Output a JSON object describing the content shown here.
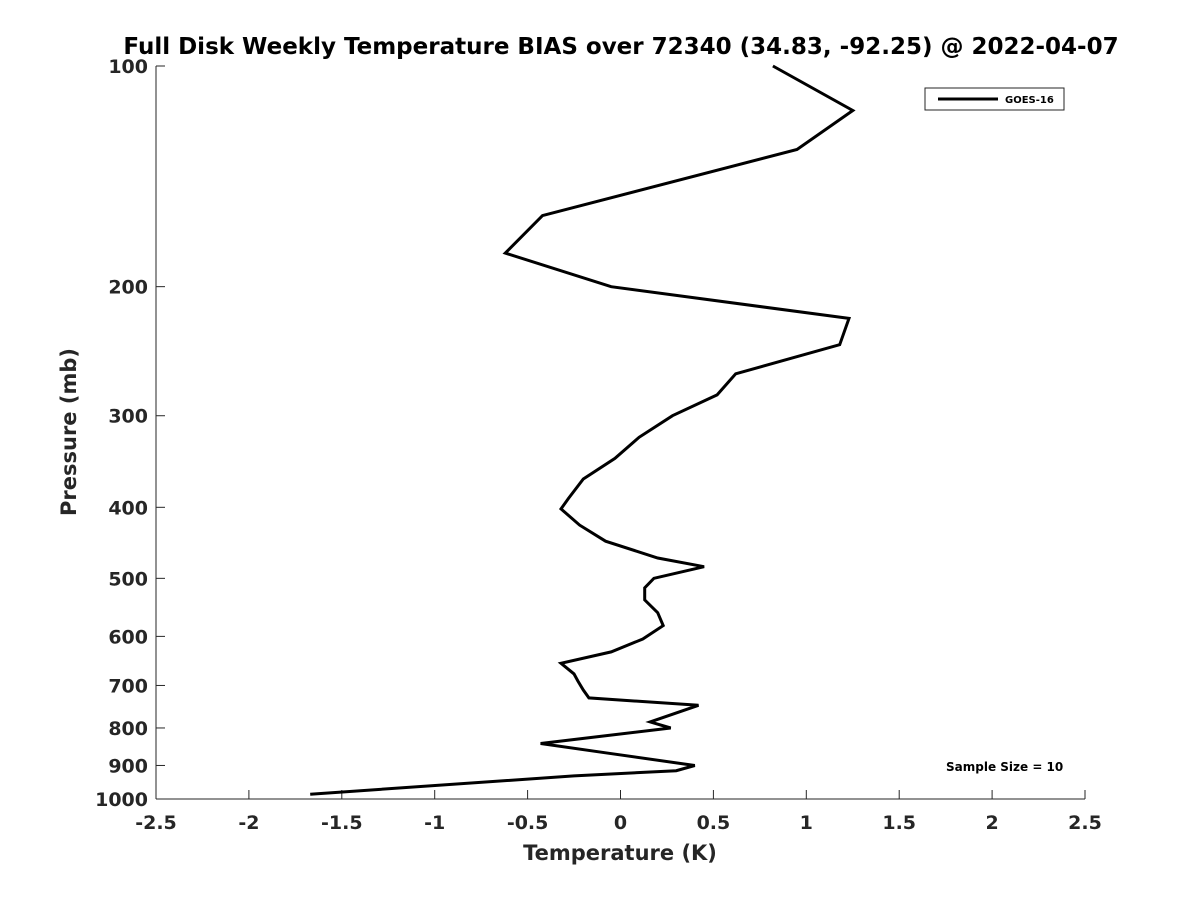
{
  "chart_data": {
    "type": "line",
    "title": "Full Disk Weekly Temperature BIAS over 72340 (34.83, -92.25) @ 2022-04-07",
    "xlabel": "Temperature (K)",
    "ylabel": "Pressure (mb)",
    "xlim": [
      -2.5,
      2.5
    ],
    "ylim": [
      1000,
      100
    ],
    "y_scale": "log",
    "y_reversed": true,
    "x_ticks": [
      "-2.5",
      "-2",
      "-1.5",
      "-1",
      "-0.5",
      "0",
      "0.5",
      "1",
      "1.5",
      "2",
      "2.5"
    ],
    "y_ticks": [
      "100",
      "200",
      "300",
      "400",
      "500",
      "600",
      "700",
      "800",
      "900",
      "1000"
    ],
    "grid": false,
    "legend_position": "top-right",
    "series": [
      {
        "name": "GOES-16",
        "color": "#000000",
        "points": [
          {
            "x": 0.82,
            "p": 100
          },
          {
            "x": 1.25,
            "p": 115
          },
          {
            "x": 0.95,
            "p": 130
          },
          {
            "x": -0.42,
            "p": 160
          },
          {
            "x": -0.62,
            "p": 180
          },
          {
            "x": -0.05,
            "p": 200
          },
          {
            "x": 1.23,
            "p": 221
          },
          {
            "x": 1.18,
            "p": 240
          },
          {
            "x": 0.62,
            "p": 263
          },
          {
            "x": 0.52,
            "p": 281
          },
          {
            "x": 0.28,
            "p": 300
          },
          {
            "x": 0.1,
            "p": 321
          },
          {
            "x": -0.03,
            "p": 343
          },
          {
            "x": -0.2,
            "p": 366
          },
          {
            "x": -0.28,
            "p": 389
          },
          {
            "x": -0.32,
            "p": 402
          },
          {
            "x": -0.22,
            "p": 423
          },
          {
            "x": -0.08,
            "p": 445
          },
          {
            "x": 0.2,
            "p": 469
          },
          {
            "x": 0.45,
            "p": 482
          },
          {
            "x": 0.18,
            "p": 500
          },
          {
            "x": 0.13,
            "p": 515
          },
          {
            "x": 0.13,
            "p": 535
          },
          {
            "x": 0.2,
            "p": 557
          },
          {
            "x": 0.23,
            "p": 580
          },
          {
            "x": 0.12,
            "p": 605
          },
          {
            "x": -0.05,
            "p": 630
          },
          {
            "x": -0.32,
            "p": 653
          },
          {
            "x": -0.25,
            "p": 675
          },
          {
            "x": -0.23,
            "p": 690
          },
          {
            "x": -0.2,
            "p": 710
          },
          {
            "x": -0.17,
            "p": 728
          },
          {
            "x": 0.42,
            "p": 745
          },
          {
            "x": 0.16,
            "p": 785
          },
          {
            "x": 0.27,
            "p": 800
          },
          {
            "x": -0.12,
            "p": 822
          },
          {
            "x": -0.43,
            "p": 840
          },
          {
            "x": -0.08,
            "p": 865
          },
          {
            "x": 0.4,
            "p": 900
          },
          {
            "x": 0.3,
            "p": 915
          },
          {
            "x": -0.25,
            "p": 930
          },
          {
            "x": -1.67,
            "p": 985
          }
        ]
      }
    ],
    "annotations": [
      "Sample Size = 10"
    ]
  }
}
